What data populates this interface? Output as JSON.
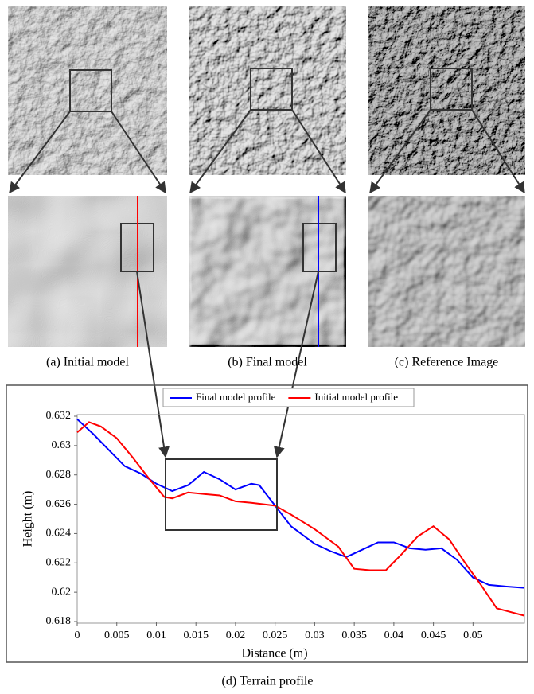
{
  "captions": {
    "a": "(a) Initial model",
    "b": "(b) Final model",
    "c": "(c) Reference Image",
    "d": "(d) Terrain profile"
  },
  "chart_data": {
    "type": "line",
    "x_label": "Distance (m)",
    "y_label": "Height (m)",
    "xlim": [
      0,
      0.0565
    ],
    "ylim": [
      0.618,
      0.632
    ],
    "xticks": [
      0,
      0.005,
      0.01,
      0.015,
      0.02,
      0.025,
      0.03,
      0.035,
      0.04,
      0.045,
      0.05
    ],
    "yticks": [
      0.618,
      0.62,
      0.622,
      0.624,
      0.626,
      0.628,
      0.63,
      0.632
    ],
    "legend": "top",
    "series": [
      {
        "name": "Final model profile",
        "color": "#0000ff",
        "x": [
          0,
          0.002,
          0.004,
          0.006,
          0.008,
          0.01,
          0.012,
          0.014,
          0.016,
          0.018,
          0.02,
          0.022,
          0.023,
          0.025,
          0.027,
          0.03,
          0.032,
          0.034,
          0.036,
          0.038,
          0.04,
          0.042,
          0.044,
          0.046,
          0.048,
          0.05,
          0.052,
          0.054,
          0.0565
        ],
        "values": [
          0.6318,
          0.6308,
          0.6297,
          0.6286,
          0.6281,
          0.6274,
          0.6269,
          0.6273,
          0.6282,
          0.6277,
          0.627,
          0.6274,
          0.6273,
          0.6259,
          0.6245,
          0.6233,
          0.6228,
          0.6224,
          0.6229,
          0.6234,
          0.6234,
          0.623,
          0.6229,
          0.623,
          0.6222,
          0.621,
          0.6205,
          0.6204,
          0.6203
        ]
      },
      {
        "name": "Initial model profile",
        "color": "#ff0000",
        "x": [
          0,
          0.0015,
          0.003,
          0.005,
          0.007,
          0.009,
          0.011,
          0.012,
          0.014,
          0.016,
          0.018,
          0.02,
          0.022,
          0.025,
          0.027,
          0.03,
          0.033,
          0.035,
          0.037,
          0.039,
          0.041,
          0.043,
          0.045,
          0.047,
          0.049,
          0.051,
          0.053,
          0.0565
        ],
        "values": [
          0.6309,
          0.6316,
          0.6313,
          0.6305,
          0.6292,
          0.6278,
          0.6265,
          0.6264,
          0.6268,
          0.6267,
          0.6266,
          0.6262,
          0.6261,
          0.6259,
          0.6253,
          0.6243,
          0.6231,
          0.6216,
          0.6215,
          0.6215,
          0.6226,
          0.6238,
          0.6245,
          0.6236,
          0.622,
          0.6205,
          0.6189,
          0.6184
        ]
      }
    ]
  }
}
